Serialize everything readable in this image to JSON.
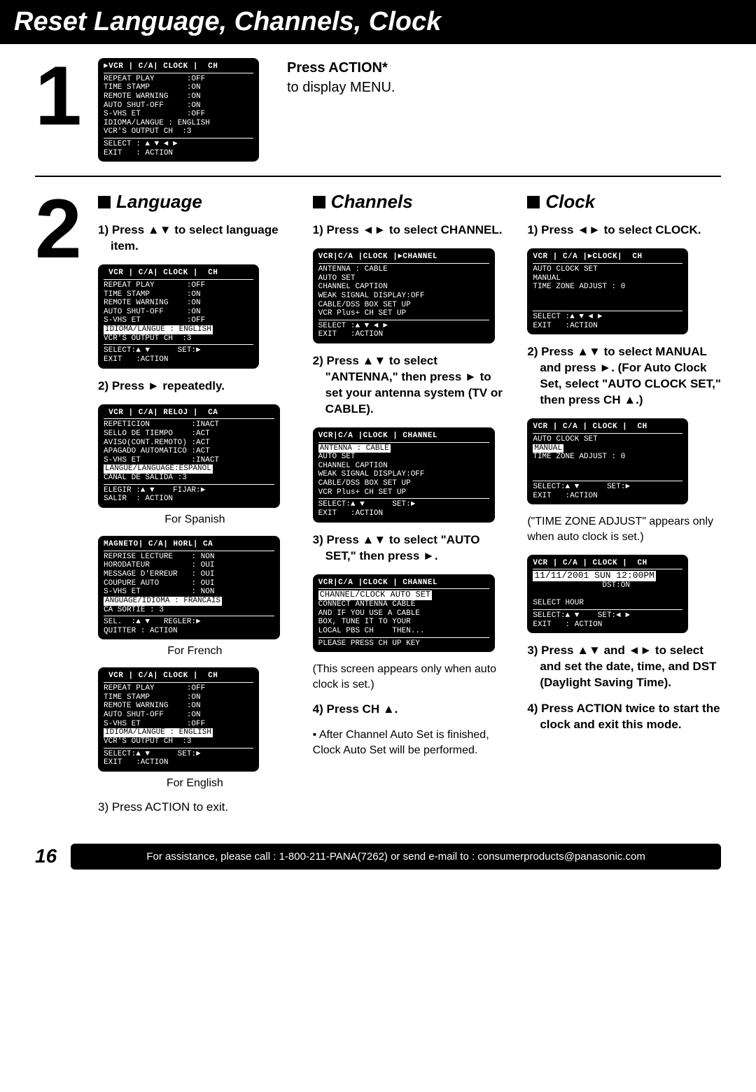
{
  "page_title": "Reset Language, Channels, Clock",
  "page_number": "16",
  "footer_bar": "For assistance, please call : 1-800-211-PANA(7262) or send e-mail to : consumerproducts@panasonic.com",
  "step1": {
    "prompt": "Press ACTION*",
    "sub": "to display MENU.",
    "screen": {
      "tabs": "►VCR | C/A| CLOCK |  CH",
      "lines": [
        "REPEAT PLAY       :OFF",
        "TIME STAMP        :ON",
        "REMOTE WARNING    :ON",
        "AUTO SHUT-OFF     :ON",
        "S-VHS ET          :OFF",
        "IDIOMA/LANGUE : ENGLISH",
        "VCR'S OUTPUT CH  :3"
      ],
      "footer": [
        "SELECT : ▲ ▼ ◄ ►",
        "EXIT   : ACTION"
      ]
    }
  },
  "step2": {
    "language": {
      "title": "Language",
      "s1": "1) Press ▲▼ to select language item.",
      "screen1": {
        "tabs": " VCR | C/A| CLOCK |  CH",
        "lines": [
          "REPEAT PLAY       :OFF",
          "TIME STAMP        :ON",
          "REMOTE WARNING    :ON",
          "AUTO SHUT-OFF     :ON",
          "S-VHS ET          :OFF"
        ],
        "hl": "IDIOMA/LANGUE : ENGLISH",
        "after": [
          "VCR'S OUTPUT CH  :3"
        ],
        "footer": [
          "SELECT:▲ ▼      SET:►",
          "EXIT   :ACTION"
        ]
      },
      "s2": "2) Press ► repeatedly.",
      "screen_es": {
        "tabs": " VCR | C/A| RELOJ |  CA",
        "lines": [
          "REPETICION         :INACT",
          "SELLO DE TIEMPO    :ACT",
          "AVISO(CONT.REMOTO) :ACT",
          "APAGADO AUTOMATICO :ACT",
          "S-VHS ET           :INACT"
        ],
        "hl": "LANGUE/LANGUAGE:ESPANOL",
        "after": [
          "CANAL DE SALIDA :3"
        ],
        "footer": [
          "ELEGIR :▲ ▼    FIJAR:►",
          "SALIR  : ACTION"
        ]
      },
      "cap_es": "For Spanish",
      "screen_fr": {
        "tabs": "MAGNETO| C/A| HORL| CA",
        "lines": [
          "REPRISE LECTURE    : NON",
          "HORODATEUR         : OUI",
          "MESSAGE D'ERREUR   : OUI",
          "COUPURE AUTO       : OUI",
          "S-VHS ET           : NON"
        ],
        "hl": "ANGUAGE/IDIOMA : FRANCAIS",
        "after": [
          "CA SORTIE : 3"
        ],
        "footer": [
          "SEL.  :▲ ▼   REGLER:►",
          "QUITTER : ACTION"
        ]
      },
      "cap_fr": "For French",
      "screen_en": {
        "tabs": " VCR | C/A| CLOCK |  CH",
        "lines": [
          "REPEAT PLAY       :OFF",
          "TIME STAMP        :ON",
          "REMOTE WARNING    :ON",
          "AUTO SHUT-OFF     :ON",
          "S-VHS ET          :OFF"
        ],
        "hl": "IDIOMA/LANGUE : ENGLISH",
        "after": [
          "VCR'S OUTPUT CH  :3"
        ],
        "footer": [
          "SELECT:▲ ▼      SET:►",
          "EXIT   :ACTION"
        ]
      },
      "cap_en": "For English",
      "s3": "3) Press ACTION to exit."
    },
    "channels": {
      "title": "Channels",
      "s1": "1) Press ◄► to select CHANNEL.",
      "screen1": {
        "tabs": "VCR|C/A |CLOCK |►CHANNEL",
        "lines": [
          "ANTENNA : CABLE",
          "AUTO SET",
          "CHANNEL CAPTION",
          "WEAK SIGNAL DISPLAY:OFF",
          "CABLE/DSS BOX SET UP",
          "VCR Plus+ CH SET UP"
        ],
        "footer": [
          "SELECT :▲ ▼ ◄ ►",
          "EXIT   :ACTION"
        ]
      },
      "s2": "2) Press ▲▼ to select \"ANTENNA,\" then press ► to set your antenna system (TV or CABLE).",
      "screen2": {
        "tabs": "VCR|C/A |CLOCK | CHANNEL",
        "hl": "ANTENNA : CABLE",
        "lines": [
          "AUTO SET",
          "CHANNEL CAPTION",
          "WEAK SIGNAL DISPLAY:OFF",
          "CABLE/DSS BOX SET UP",
          "VCR Plus+ CH SET UP"
        ],
        "footer": [
          "SELECT:▲ ▼      SET:►",
          "EXIT   :ACTION"
        ]
      },
      "s3": "3) Press ▲▼ to select \"AUTO SET,\" then press ►.",
      "screen3": {
        "tabs": "VCR|C/A |CLOCK | CHANNEL",
        "hl": "CHANNEL/CLOCK AUTO SET",
        "lines": [
          "CONNECT ANTENNA CABLE",
          "AND IF YOU USE A CABLE",
          "BOX, TUNE IT TO YOUR",
          "LOCAL PBS CH    THEN..."
        ],
        "footer": [
          "PLEASE PRESS CH UP KEY"
        ]
      },
      "note3": "(This screen appears only when auto clock is set.)",
      "s4": "4) Press CH ▲.",
      "s4b": "• After Channel Auto Set is finished, Clock Auto Set will be performed."
    },
    "clock": {
      "title": "Clock",
      "s1": "1) Press ◄► to select CLOCK.",
      "screen1": {
        "tabs": "VCR | C/A |►CLOCK|  CH",
        "lines": [
          "AUTO CLOCK SET",
          "MANUAL",
          "TIME ZONE ADJUST : 0",
          "",
          "",
          ""
        ],
        "footer": [
          "SELECT :▲ ▼ ◄ ►",
          "EXIT   :ACTION"
        ]
      },
      "s2": "2) Press ▲▼ to select MANUAL and press ►. (For Auto Clock Set, select \"AUTO CLOCK SET,\" then press CH ▲.)",
      "screen2": {
        "tabs": "VCR | C/A | CLOCK |  CH",
        "lines": [
          "AUTO CLOCK SET"
        ],
        "hl": "MANUAL",
        "after": [
          "TIME ZONE ADJUST : 0",
          "",
          ""
        ],
        "footer": [
          "SELECT:▲ ▼      SET:►",
          "EXIT   :ACTION"
        ]
      },
      "note2": "(\"TIME ZONE ADJUST\" appears only when auto clock is set.)",
      "screen3": {
        "tabs": "VCR | C/A | CLOCK |  CH",
        "hl": "11/11/2001 SUN 12:00PM",
        "after": [
          "               DST:ON",
          "",
          "SELECT HOUR"
        ],
        "footer": [
          "SELECT:▲ ▼    SET:◄ ►",
          "EXIT   : ACTION"
        ]
      },
      "s3": "3) Press ▲▼ and ◄► to select and set the date, time, and DST (Daylight Saving Time).",
      "s4": "4) Press ACTION twice to start the clock and exit this mode."
    }
  }
}
